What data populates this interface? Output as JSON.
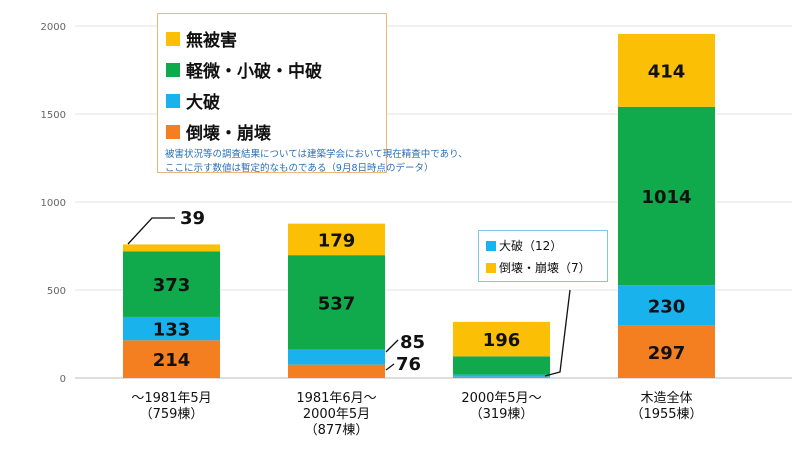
{
  "chart_data": {
    "type": "bar",
    "stacked": true,
    "categories": [
      [
        "～1981年5月",
        "（759棟）"
      ],
      [
        "1981年6月～",
        "2000年5月",
        "（877棟）"
      ],
      [
        "2000年5月～",
        "（319棟）"
      ],
      [
        "木造全体",
        "（1955棟）"
      ]
    ],
    "series": [
      {
        "name": "倒壊・崩壊",
        "color": "#f47f20",
        "values": [
          214,
          76,
          7,
          297
        ]
      },
      {
        "name": "大破",
        "color": "#19b2ec",
        "values": [
          133,
          85,
          12,
          230
        ]
      },
      {
        "name": "軽微・小破・中破",
        "color": "#10a94c",
        "values": [
          373,
          537,
          104,
          1014
        ]
      },
      {
        "name": "無被害",
        "color": "#fbbf06",
        "values": [
          39,
          179,
          196,
          414
        ]
      }
    ],
    "ylim": [
      0,
      2000
    ],
    "yticks": [
      "0",
      "500",
      "1000",
      "1500",
      "2000"
    ],
    "grid": true,
    "legend": {
      "placement": "top-left",
      "items": [
        {
          "label": "無被害",
          "color": "#fbbf06"
        },
        {
          "label": "軽微・小破・中破",
          "color": "#10a94c"
        },
        {
          "label": "大破",
          "color": "#19b2ec"
        },
        {
          "label": "倒壊・崩壊",
          "color": "#f47f20"
        }
      ]
    },
    "note": [
      "被害状況等の調査結果については建築学会において現在精査中であり、",
      "ここに示す数値は暫定的なものである（9月8日時点のデータ）"
    ],
    "inset_legend": [
      {
        "label": "大破（12）",
        "color": "#19b2ec"
      },
      {
        "label": "倒壊・崩壊（7）",
        "color": "#fbbf06"
      }
    ]
  }
}
